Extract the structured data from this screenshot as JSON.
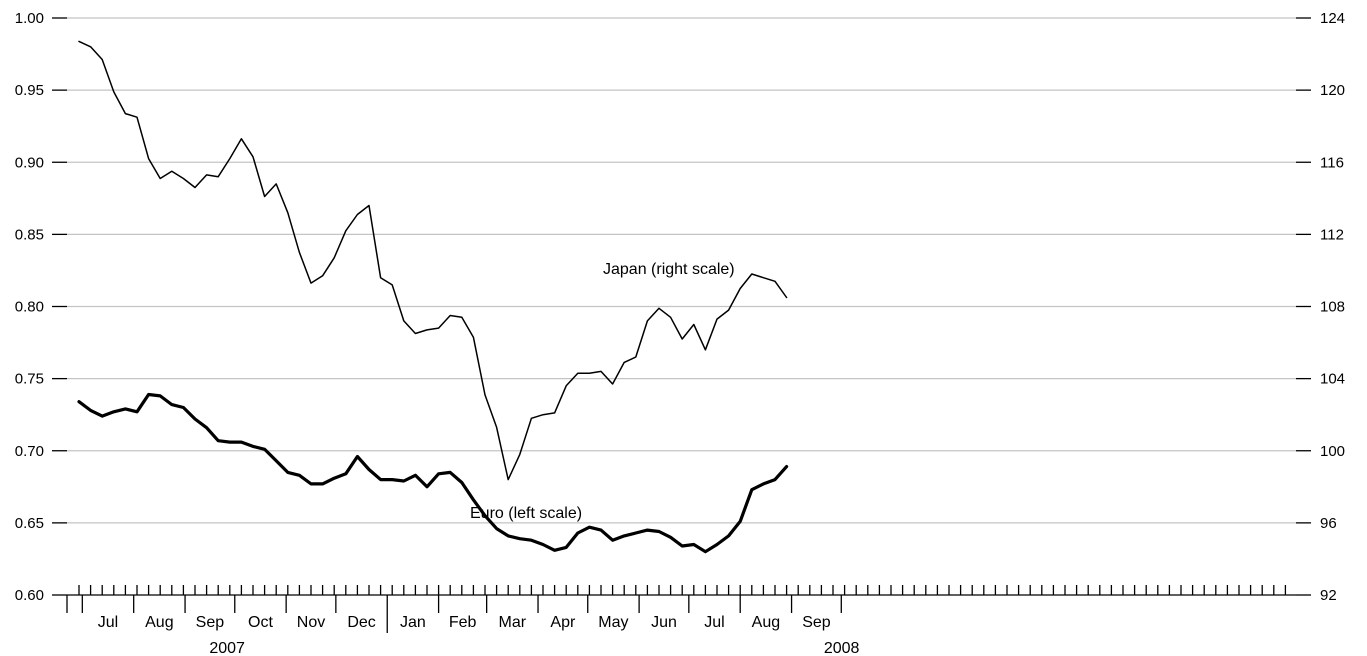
{
  "chart_data": {
    "type": "line",
    "title": "",
    "grid": true,
    "left_axis": {
      "ticks": [
        "0.60",
        "0.65",
        "0.70",
        "0.75",
        "0.80",
        "0.85",
        "0.90",
        "0.95",
        "1.00"
      ],
      "ylim": [
        0.6,
        1.0
      ]
    },
    "right_axis": {
      "ticks": [
        "92",
        "96",
        "100",
        "104",
        "108",
        "112",
        "116",
        "120",
        "124"
      ],
      "ylim": [
        92,
        124
      ]
    },
    "months": [
      "Jul",
      "Aug",
      "Sep",
      "Oct",
      "Nov",
      "Dec",
      "Jan",
      "Feb",
      "Mar",
      "Apr",
      "May",
      "Jun",
      "Jul",
      "Aug",
      "Sep"
    ],
    "years": [
      {
        "label": "2007"
      },
      {
        "label": "2008"
      }
    ],
    "x_start": "2007-06-29",
    "x_step_days": 7,
    "series": [
      {
        "name": "Japan (right scale)",
        "axis": "right",
        "values": [
          122.7,
          122.4,
          121.7,
          119.9,
          118.7,
          118.5,
          116.2,
          115.1,
          115.5,
          115.1,
          114.6,
          115.3,
          115.2,
          116.2,
          117.3,
          116.3,
          114.1,
          114.8,
          113.2,
          111.0,
          109.3,
          109.7,
          110.7,
          112.2,
          113.1,
          113.6,
          109.6,
          109.2,
          107.2,
          106.5,
          106.7,
          106.8,
          107.5,
          107.4,
          106.3,
          103.1,
          101.3,
          98.4,
          99.8,
          101.8,
          102.0,
          102.1,
          103.6,
          104.3,
          104.3,
          104.4,
          103.7,
          104.9,
          105.2,
          107.2,
          107.9,
          107.4,
          106.2,
          107.0,
          105.6,
          107.3,
          107.8,
          109.0,
          109.8,
          109.6,
          109.4,
          108.5
        ]
      },
      {
        "name": "Euro (left scale)",
        "axis": "left",
        "values": [
          0.734,
          0.728,
          0.724,
          0.727,
          0.729,
          0.727,
          0.739,
          0.738,
          0.732,
          0.73,
          0.722,
          0.716,
          0.707,
          0.706,
          0.706,
          0.703,
          0.701,
          0.693,
          0.685,
          0.683,
          0.677,
          0.677,
          0.681,
          0.684,
          0.696,
          0.687,
          0.68,
          0.68,
          0.679,
          0.683,
          0.675,
          0.684,
          0.685,
          0.678,
          0.666,
          0.655,
          0.646,
          0.641,
          0.639,
          0.638,
          0.635,
          0.631,
          0.633,
          0.643,
          0.647,
          0.645,
          0.638,
          0.641,
          0.643,
          0.645,
          0.644,
          0.64,
          0.634,
          0.635,
          0.63,
          0.635,
          0.641,
          0.651,
          0.673,
          0.677,
          0.68,
          0.689
        ]
      }
    ]
  }
}
